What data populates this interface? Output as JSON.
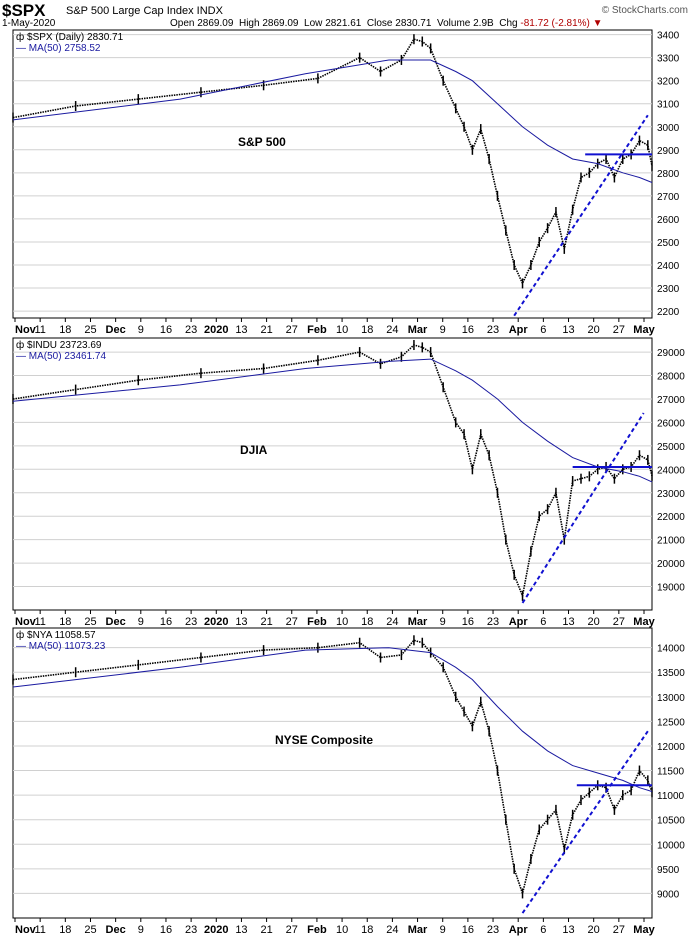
{
  "header": {
    "symbol": "$SPX",
    "name": "S&P 500 Large Cap Index INDX",
    "date": "1-May-2020",
    "open_label": "Open",
    "open": "2869.09",
    "high_label": "High",
    "high": "2869.09",
    "low_label": "Low",
    "low": "2821.61",
    "close_label": "Close",
    "close": "2830.71",
    "volume_label": "Volume",
    "volume": "2.9B",
    "chg_label": "Chg",
    "chg": "-81.72 (-2.81%)",
    "credit": "© StockCharts.com"
  },
  "colors": {
    "price": "#000000",
    "ma": "#1a1aa0",
    "trend": "#1010d0",
    "grid": "#d0d0d0"
  },
  "x_axis": {
    "labels": [
      "Nov",
      "11",
      "18",
      "25",
      "Dec",
      "9",
      "16",
      "23",
      "2020",
      "13",
      "21",
      "27",
      "Feb",
      "10",
      "18",
      "24",
      "Mar",
      "9",
      "16",
      "23",
      "Apr",
      "6",
      "13",
      "20",
      "27",
      "May"
    ],
    "bold": [
      "Nov",
      "Dec",
      "2020",
      "Feb",
      "Mar",
      "Apr",
      "May"
    ]
  },
  "chart_data": [
    {
      "type": "line",
      "legend_price": "$SPX (Daily) 2830.71",
      "legend_ma": "MA(50) 2758.52",
      "annotation": "S&P 500",
      "y_ticks": [
        "2200",
        "2300",
        "2400",
        "2500",
        "2600",
        "2700",
        "2800",
        "2900",
        "3000",
        "3100",
        "3200",
        "3300",
        "3400"
      ],
      "ylim": [
        2170,
        3420
      ],
      "series": [
        {
          "values": [
            [
              0,
              3040
            ],
            [
              15,
              3090
            ],
            [
              30,
              3120
            ],
            [
              45,
              3150
            ],
            [
              60,
              3180
            ],
            [
              73,
              3210
            ],
            [
              83,
              3300
            ],
            [
              88,
              3240
            ],
            [
              93,
              3290
            ],
            [
              96,
              3380
            ],
            [
              98,
              3370
            ],
            [
              100,
              3340
            ],
            [
              103,
              3200
            ],
            [
              106,
              3080
            ],
            [
              108,
              3000
            ],
            [
              110,
              2900
            ],
            [
              112,
              2990
            ],
            [
              114,
              2860
            ],
            [
              116,
              2700
            ],
            [
              118,
              2550
            ],
            [
              120,
              2400
            ],
            [
              122,
              2320
            ],
            [
              124,
              2400
            ],
            [
              126,
              2500
            ],
            [
              128,
              2560
            ],
            [
              130,
              2630
            ],
            [
              132,
              2470
            ],
            [
              134,
              2640
            ],
            [
              136,
              2780
            ],
            [
              138,
              2800
            ],
            [
              140,
              2840
            ],
            [
              142,
              2860
            ],
            [
              144,
              2780
            ],
            [
              146,
              2860
            ],
            [
              148,
              2880
            ],
            [
              150,
              2940
            ],
            [
              152,
              2920
            ],
            [
              153,
              2830
            ]
          ]
        },
        {
          "values": [
            [
              0,
              3030
            ],
            [
              40,
              3120
            ],
            [
              70,
              3230
            ],
            [
              90,
              3290
            ],
            [
              100,
              3290
            ],
            [
              106,
              3240
            ],
            [
              110,
              3200
            ],
            [
              116,
              3100
            ],
            [
              122,
              3000
            ],
            [
              128,
              2920
            ],
            [
              134,
              2860
            ],
            [
              140,
              2840
            ],
            [
              146,
              2800
            ],
            [
              150,
              2780
            ],
            [
              153,
              2758
            ]
          ]
        }
      ],
      "trend_lines": [
        {
          "from": [
            120,
            2180
          ],
          "to": [
            152,
            3050
          ]
        },
        {
          "from": [
            137,
            2880
          ],
          "to": [
            153,
            2880
          ]
        }
      ]
    },
    {
      "type": "line",
      "legend_price": "$INDU 23723.69",
      "legend_ma": "MA(50) 23461.74",
      "annotation": "DJIA",
      "y_ticks": [
        "19000",
        "20000",
        "21000",
        "22000",
        "23000",
        "24000",
        "25000",
        "26000",
        "27000",
        "28000",
        "29000"
      ],
      "ylim": [
        18000,
        29600
      ],
      "series": [
        {
          "values": [
            [
              0,
              27000
            ],
            [
              15,
              27400
            ],
            [
              30,
              27800
            ],
            [
              45,
              28100
            ],
            [
              60,
              28300
            ],
            [
              73,
              28650
            ],
            [
              83,
              29000
            ],
            [
              88,
              28500
            ],
            [
              93,
              28800
            ],
            [
              96,
              29300
            ],
            [
              98,
              29200
            ],
            [
              100,
              29000
            ],
            [
              103,
              27500
            ],
            [
              106,
              26000
            ],
            [
              108,
              25500
            ],
            [
              110,
              24000
            ],
            [
              112,
              25500
            ],
            [
              114,
              24600
            ],
            [
              116,
              23000
            ],
            [
              118,
              21000
            ],
            [
              120,
              19500
            ],
            [
              122,
              18600
            ],
            [
              124,
              20500
            ],
            [
              126,
              22000
            ],
            [
              128,
              22300
            ],
            [
              130,
              23000
            ],
            [
              132,
              21000
            ],
            [
              134,
              23500
            ],
            [
              136,
              23600
            ],
            [
              138,
              23700
            ],
            [
              140,
              24000
            ],
            [
              142,
              24100
            ],
            [
              144,
              23600
            ],
            [
              146,
              24000
            ],
            [
              148,
              24100
            ],
            [
              150,
              24600
            ],
            [
              152,
              24400
            ],
            [
              153,
              23724
            ]
          ]
        },
        {
          "values": [
            [
              0,
              26900
            ],
            [
              40,
              27600
            ],
            [
              70,
              28300
            ],
            [
              90,
              28600
            ],
            [
              100,
              28700
            ],
            [
              106,
              28200
            ],
            [
              110,
              27800
            ],
            [
              116,
              27000
            ],
            [
              122,
              26000
            ],
            [
              128,
              25200
            ],
            [
              134,
              24500
            ],
            [
              140,
              24100
            ],
            [
              146,
              23900
            ],
            [
              150,
              23700
            ],
            [
              153,
              23462
            ]
          ]
        }
      ],
      "trend_lines": [
        {
          "from": [
            122,
            18300
          ],
          "to": [
            151,
            26400
          ]
        },
        {
          "from": [
            134,
            24100
          ],
          "to": [
            153,
            24100
          ]
        }
      ]
    },
    {
      "type": "line",
      "legend_price": "$NYA 11058.57",
      "legend_ma": "MA(50) 11073.23",
      "annotation": "NYSE Composite",
      "y_ticks": [
        "9000",
        "9500",
        "10000",
        "10500",
        "11000",
        "11500",
        "12000",
        "12500",
        "13000",
        "13500",
        "14000"
      ],
      "ylim": [
        8500,
        14400
      ],
      "series": [
        {
          "values": [
            [
              0,
              13350
            ],
            [
              15,
              13500
            ],
            [
              30,
              13650
            ],
            [
              45,
              13800
            ],
            [
              60,
              13950
            ],
            [
              73,
              14000
            ],
            [
              83,
              14100
            ],
            [
              88,
              13800
            ],
            [
              93,
              13850
            ],
            [
              96,
              14150
            ],
            [
              98,
              14100
            ],
            [
              100,
              13900
            ],
            [
              103,
              13600
            ],
            [
              106,
              13000
            ],
            [
              108,
              12700
            ],
            [
              110,
              12400
            ],
            [
              112,
              12900
            ],
            [
              114,
              12300
            ],
            [
              116,
              11500
            ],
            [
              118,
              10500
            ],
            [
              120,
              9500
            ],
            [
              122,
              9000
            ],
            [
              124,
              9700
            ],
            [
              126,
              10300
            ],
            [
              128,
              10500
            ],
            [
              130,
              10700
            ],
            [
              132,
              9900
            ],
            [
              134,
              10600
            ],
            [
              136,
              10900
            ],
            [
              138,
              11050
            ],
            [
              140,
              11200
            ],
            [
              142,
              11150
            ],
            [
              144,
              10700
            ],
            [
              146,
              11000
            ],
            [
              148,
              11100
            ],
            [
              150,
              11500
            ],
            [
              152,
              11300
            ],
            [
              153,
              11059
            ]
          ]
        },
        {
          "values": [
            [
              0,
              13200
            ],
            [
              40,
              13600
            ],
            [
              70,
              13950
            ],
            [
              90,
              14000
            ],
            [
              100,
              13900
            ],
            [
              106,
              13600
            ],
            [
              110,
              13350
            ],
            [
              116,
              12800
            ],
            [
              122,
              12300
            ],
            [
              128,
              11900
            ],
            [
              134,
              11600
            ],
            [
              140,
              11450
            ],
            [
              146,
              11300
            ],
            [
              150,
              11150
            ],
            [
              153,
              11073
            ]
          ]
        }
      ],
      "trend_lines": [
        {
          "from": [
            122,
            8600
          ],
          "to": [
            152,
            12300
          ]
        },
        {
          "from": [
            135,
            11200
          ],
          "to": [
            153,
            11200
          ]
        }
      ]
    }
  ]
}
